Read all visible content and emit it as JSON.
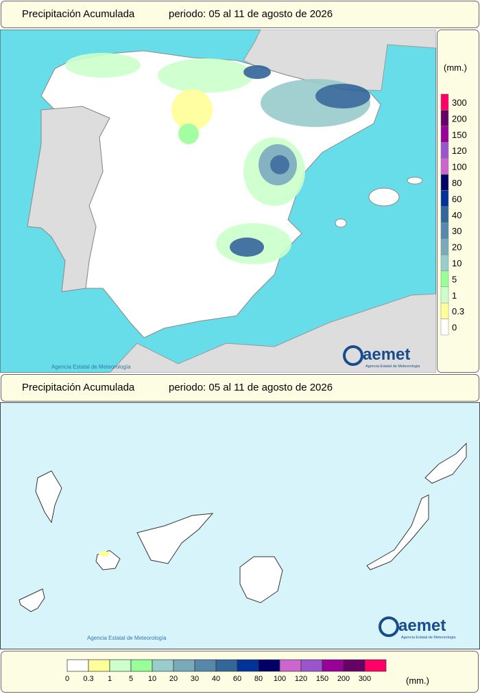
{
  "panels": [
    {
      "title": "Precipitación Acumulada",
      "period": "periodo: 05 al 11 de agosto de 2026"
    },
    {
      "title": "Precipitación Acumulada",
      "period": "periodo: 05 al 11 de agosto de 2026"
    }
  ],
  "maps": [
    {
      "credit": "Agencia Estatal de Meteorología",
      "logo": "aemet",
      "logo_subtitle": "Agencia Estatal de Meteorología"
    },
    {
      "credit": "Agencia Estatal de Meteorología",
      "logo": "aemet",
      "logo_subtitle": "Agencia Estatal de Meteorología"
    }
  ],
  "legend": {
    "unit": "(mm.)",
    "items": [
      {
        "label": "0",
        "color": "#ffffff"
      },
      {
        "label": "0.3",
        "color": "#ffff99"
      },
      {
        "label": "1",
        "color": "#ccffcc"
      },
      {
        "label": "5",
        "color": "#99ff99"
      },
      {
        "label": "10",
        "color": "#99cccc"
      },
      {
        "label": "20",
        "color": "#77aabb"
      },
      {
        "label": "30",
        "color": "#5588aa"
      },
      {
        "label": "40",
        "color": "#336699"
      },
      {
        "label": "60",
        "color": "#003399"
      },
      {
        "label": "80",
        "color": "#000066"
      },
      {
        "label": "100",
        "color": "#cc66cc"
      },
      {
        "label": "120",
        "color": "#9955cc"
      },
      {
        "label": "150",
        "color": "#990099"
      },
      {
        "label": "200",
        "color": "#660066"
      },
      {
        "label": "300",
        "color": "#ff0066"
      }
    ]
  }
}
